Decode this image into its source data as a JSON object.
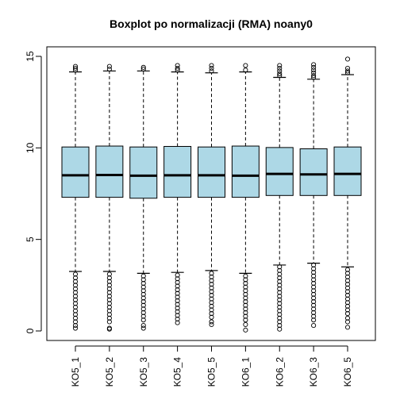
{
  "chart_data": {
    "type": "boxplot",
    "title": "Boxplot po normalizacji (RMA) noany0",
    "xlabel": "",
    "ylabel": "",
    "ylim": [
      -0.4,
      15.5
    ],
    "yticks": [
      0,
      5,
      10,
      15
    ],
    "y_tick_labels": [
      "0",
      "5",
      "10",
      "15"
    ],
    "box_fill": "#ADD8E6",
    "grid": false,
    "categories": [
      "KO5_1",
      "KO5_2",
      "KO5_3",
      "KO5_4",
      "KO5_5",
      "KO6_1",
      "KO6_2",
      "KO6_3",
      "KO6_5"
    ],
    "stats": [
      {
        "name": "KO5_1",
        "whisker_low": 3.25,
        "q1": 7.3,
        "median": 8.5,
        "q3": 10.05,
        "whisker_high": 14.15,
        "outliers_high": [
          14.25,
          14.35,
          14.45
        ],
        "outliers_low": [
          3.1,
          2.9,
          2.7,
          2.5,
          2.3,
          2.1,
          1.9,
          1.7,
          1.5,
          1.3,
          1.1,
          0.9,
          0.7,
          0.5,
          0.3,
          0.15
        ]
      },
      {
        "name": "KO5_2",
        "whisker_low": 3.25,
        "q1": 7.3,
        "median": 8.52,
        "q3": 10.1,
        "whisker_high": 14.2,
        "outliers_high": [
          14.3,
          14.45
        ],
        "outliers_low": [
          3.1,
          2.9,
          2.7,
          2.5,
          2.3,
          2.1,
          1.9,
          1.7,
          1.5,
          1.3,
          1.1,
          0.9,
          0.7,
          0.5,
          0.15,
          0.1
        ]
      },
      {
        "name": "KO5_3",
        "whisker_low": 3.15,
        "q1": 7.25,
        "median": 8.48,
        "q3": 10.05,
        "whisker_high": 14.2,
        "outliers_high": [
          14.3,
          14.4
        ],
        "outliers_low": [
          3.0,
          2.8,
          2.6,
          2.4,
          2.2,
          2.0,
          1.8,
          1.6,
          1.4,
          1.2,
          1.0,
          0.8,
          0.6,
          0.3,
          0.15
        ]
      },
      {
        "name": "KO5_4",
        "whisker_low": 3.2,
        "q1": 7.3,
        "median": 8.5,
        "q3": 10.08,
        "whisker_high": 14.15,
        "outliers_high": [
          14.25,
          14.35,
          14.5
        ],
        "outliers_low": [
          3.05,
          2.85,
          2.65,
          2.45,
          2.25,
          2.05,
          1.85,
          1.65,
          1.45,
          1.25,
          1.05,
          0.85,
          0.65,
          0.45
        ]
      },
      {
        "name": "KO5_5",
        "whisker_low": 3.3,
        "q1": 7.3,
        "median": 8.5,
        "q3": 10.05,
        "whisker_high": 14.1,
        "outliers_high": [
          14.2,
          14.35,
          14.5
        ],
        "outliers_low": [
          3.15,
          2.95,
          2.75,
          2.55,
          2.35,
          2.15,
          1.95,
          1.75,
          1.55,
          1.35,
          1.15,
          0.95,
          0.75,
          0.5,
          0.35
        ]
      },
      {
        "name": "KO6_1",
        "whisker_low": 3.15,
        "q1": 7.3,
        "median": 8.48,
        "q3": 10.1,
        "whisker_high": 14.15,
        "outliers_high": [
          14.25,
          14.5
        ],
        "outliers_low": [
          3.0,
          2.8,
          2.6,
          2.4,
          2.2,
          2.0,
          1.8,
          1.6,
          1.4,
          1.2,
          1.0,
          0.8,
          0.6,
          0.35,
          0.05
        ]
      },
      {
        "name": "KO6_2",
        "whisker_low": 3.6,
        "q1": 7.4,
        "median": 8.58,
        "q3": 10.02,
        "whisker_high": 13.85,
        "outliers_high": [
          13.95,
          14.05,
          14.2,
          14.35,
          14.5
        ],
        "outliers_low": [
          3.5,
          3.3,
          3.1,
          2.9,
          2.7,
          2.5,
          2.3,
          2.1,
          1.9,
          1.7,
          1.5,
          1.3,
          1.1,
          0.9,
          0.7,
          0.5,
          0.3,
          0.1
        ]
      },
      {
        "name": "KO6_3",
        "whisker_low": 3.7,
        "q1": 7.4,
        "median": 8.55,
        "q3": 9.95,
        "whisker_high": 13.75,
        "outliers_high": [
          13.85,
          13.95,
          14.1,
          14.25,
          14.4,
          14.55
        ],
        "outliers_low": [
          3.6,
          3.4,
          3.2,
          3.0,
          2.8,
          2.6,
          2.4,
          2.2,
          2.0,
          1.8,
          1.6,
          1.4,
          1.2,
          1.0,
          0.8,
          0.6,
          0.3
        ]
      },
      {
        "name": "KO6_5",
        "whisker_low": 3.5,
        "q1": 7.4,
        "median": 8.58,
        "q3": 10.05,
        "whisker_high": 14.0,
        "outliers_high": [
          14.1,
          14.2,
          14.35,
          14.85
        ],
        "outliers_low": [
          3.35,
          3.15,
          2.95,
          2.75,
          2.55,
          2.35,
          2.15,
          1.95,
          1.75,
          1.55,
          1.35,
          1.15,
          0.95,
          0.7,
          0.5,
          0.2
        ]
      }
    ]
  }
}
